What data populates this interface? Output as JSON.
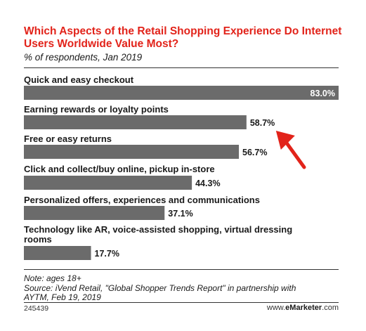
{
  "header": {
    "title": "Which Aspects of the Retail Shopping Experience Do Internet Users Worldwide Value Most?",
    "subtitle": "% of respondents, Jan 2019"
  },
  "colors": {
    "title": "#e2231a",
    "bar": "#6b6b6b",
    "arrow": "#e2231a",
    "value_inside": "#ffffff",
    "value_outside": "#1a1a1a"
  },
  "chart_data": {
    "type": "bar",
    "orientation": "horizontal",
    "title": "Which Aspects of the Retail Shopping Experience Do Internet Users Worldwide Value Most?",
    "subtitle": "% of respondents, Jan 2019",
    "xlim": [
      0,
      83.0
    ],
    "grid": false,
    "categories": [
      [
        "Quick and easy checkout"
      ],
      [
        "Earning rewards or loyalty points"
      ],
      [
        "Free or easy returns"
      ],
      [
        "Click and collect/buy online, pickup in-store"
      ],
      [
        "Personalized offers, experiences and communications"
      ],
      [
        "Technology like AR, voice-assisted shopping, virtual dressing",
        "rooms"
      ]
    ],
    "values": [
      83.0,
      58.7,
      56.7,
      44.3,
      37.1,
      17.7
    ],
    "value_labels": [
      "83.0%",
      "58.7%",
      "56.7%",
      "44.3%",
      "37.1%",
      "17.7%"
    ],
    "highlight_index": 1
  },
  "footnote": {
    "note": "Note: ages 18+",
    "source_line1": "Source: iVend Retail, \"Global Shopper Trends Report\" in partnership with",
    "source_line2": "AYTM, Feb 19, 2019"
  },
  "footer": {
    "chart_id": "245439",
    "brand_prefix": "www.",
    "brand_name": "eMarketer",
    "brand_suffix": ".com"
  }
}
